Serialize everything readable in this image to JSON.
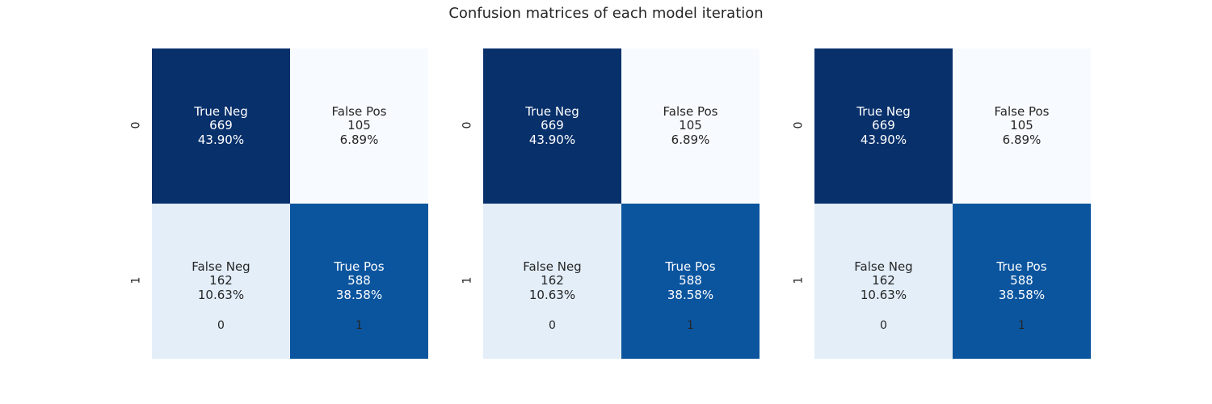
{
  "title": "Confusion matrices of each model iteration",
  "chart_data": [
    {
      "type": "heatmap",
      "x_tick_labels": [
        "0",
        "1"
      ],
      "y_tick_labels": [
        "0",
        "1"
      ],
      "colormap": "Blues",
      "cells": [
        [
          {
            "group": "True Neg",
            "count": "669",
            "percent": "43.90%",
            "value": 669,
            "color": "#08306b",
            "text_color": "#ffffff"
          },
          {
            "group": "False Pos",
            "count": "105",
            "percent": "6.89%",
            "value": 105,
            "color": "#f7fbff",
            "text_color": "#262626"
          }
        ],
        [
          {
            "group": "False Neg",
            "count": "162",
            "percent": "10.63%",
            "value": 162,
            "color": "#e3eef9",
            "text_color": "#262626"
          },
          {
            "group": "True Pos",
            "count": "588",
            "percent": "38.58%",
            "value": 588,
            "color": "#0b559f",
            "text_color": "#ffffff"
          }
        ]
      ]
    },
    {
      "type": "heatmap",
      "x_tick_labels": [
        "0",
        "1"
      ],
      "y_tick_labels": [
        "0",
        "1"
      ],
      "colormap": "Blues",
      "cells": [
        [
          {
            "group": "True Neg",
            "count": "669",
            "percent": "43.90%",
            "value": 669,
            "color": "#08306b",
            "text_color": "#ffffff"
          },
          {
            "group": "False Pos",
            "count": "105",
            "percent": "6.89%",
            "value": 105,
            "color": "#f7fbff",
            "text_color": "#262626"
          }
        ],
        [
          {
            "group": "False Neg",
            "count": "162",
            "percent": "10.63%",
            "value": 162,
            "color": "#e3eef9",
            "text_color": "#262626"
          },
          {
            "group": "True Pos",
            "count": "588",
            "percent": "38.58%",
            "value": 588,
            "color": "#0b559f",
            "text_color": "#ffffff"
          }
        ]
      ]
    },
    {
      "type": "heatmap",
      "x_tick_labels": [
        "0",
        "1"
      ],
      "y_tick_labels": [
        "0",
        "1"
      ],
      "colormap": "Blues",
      "cells": [
        [
          {
            "group": "True Neg",
            "count": "669",
            "percent": "43.90%",
            "value": 669,
            "color": "#08306b",
            "text_color": "#ffffff"
          },
          {
            "group": "False Pos",
            "count": "105",
            "percent": "6.89%",
            "value": 105,
            "color": "#f7fbff",
            "text_color": "#262626"
          }
        ],
        [
          {
            "group": "False Neg",
            "count": "162",
            "percent": "10.63%",
            "value": 162,
            "color": "#e3eef9",
            "text_color": "#262626"
          },
          {
            "group": "True Pos",
            "count": "588",
            "percent": "38.58%",
            "value": 588,
            "color": "#0b559f",
            "text_color": "#ffffff"
          }
        ]
      ]
    }
  ]
}
